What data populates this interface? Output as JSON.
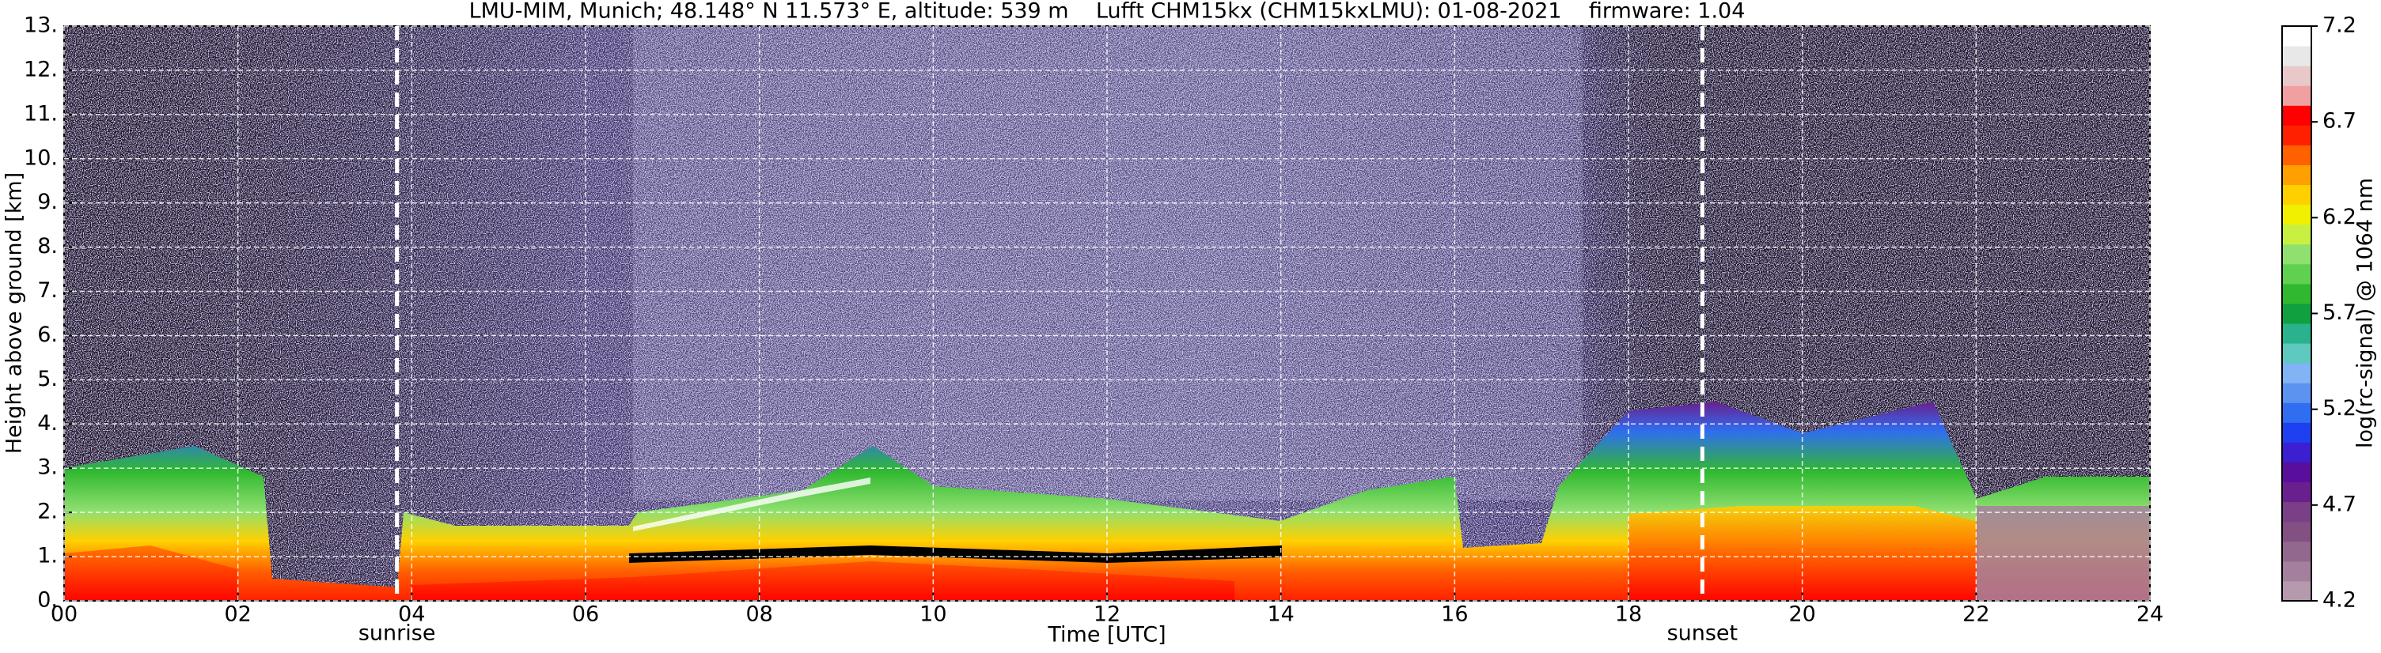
{
  "chart_data": {
    "type": "heatmap",
    "title": "LMU-MIM, Munich; 48.148° N 11.573° E, altitude: 539 m    Lufft CHM15kx (CHM15kxLMU): 01-08-2021    firmware: 1.04",
    "xlabel": "Time [UTC]",
    "ylabel": "Height above ground [km]",
    "xlim": [
      0,
      24
    ],
    "ylim": [
      0,
      13
    ],
    "xticks": [
      {
        "value": 0,
        "label": "00"
      },
      {
        "value": 2,
        "label": "02"
      },
      {
        "value": 4,
        "label": "04"
      },
      {
        "value": 6,
        "label": "06"
      },
      {
        "value": 8,
        "label": "08"
      },
      10,
      12,
      14,
      16,
      18,
      20,
      22,
      24
    ],
    "yticks": [
      {
        "value": 0,
        "label": "0."
      },
      {
        "value": 1,
        "label": "1."
      },
      {
        "value": 2,
        "label": "2."
      },
      {
        "value": 3,
        "label": "3."
      },
      {
        "value": 4,
        "label": "4."
      },
      {
        "value": 5,
        "label": "5."
      },
      {
        "value": 6,
        "label": "6."
      },
      {
        "value": 7,
        "label": "7."
      },
      {
        "value": 8,
        "label": "8."
      },
      {
        "value": 9,
        "label": "9."
      },
      {
        "value": 10,
        "label": "10."
      },
      {
        "value": 11,
        "label": "11."
      },
      {
        "value": 12,
        "label": "12."
      },
      {
        "value": 13,
        "label": "13."
      }
    ],
    "grid": true,
    "annotations": [
      {
        "x": 3.83,
        "text": "sunrise"
      },
      {
        "x": 18.85,
        "text": "sunset"
      }
    ],
    "colorbar": {
      "label": "log(rc-signal) @ 1064 nm",
      "lim": [
        4.2,
        7.2
      ],
      "ticks": [
        4.2,
        4.7,
        5.2,
        5.7,
        6.2,
        6.7,
        7.2
      ],
      "colors": [
        "#b59aae",
        "#a47f9e",
        "#93688f",
        "#825082",
        "#7a3f86",
        "#6a1f8f",
        "#5a0f9c",
        "#3b1fd0",
        "#1e40f0",
        "#2f6ef0",
        "#5c93f0",
        "#82b4f5",
        "#5fc9c0",
        "#2ab28c",
        "#10a040",
        "#30b830",
        "#60d050",
        "#90e070",
        "#c8f040",
        "#f0f000",
        "#ffd000",
        "#ffa000",
        "#ff6000",
        "#ff2000",
        "#ff0000",
        "#f0a0a0",
        "#e8c8c8",
        "#e8e8e8",
        "#ffffff"
      ]
    }
  }
}
